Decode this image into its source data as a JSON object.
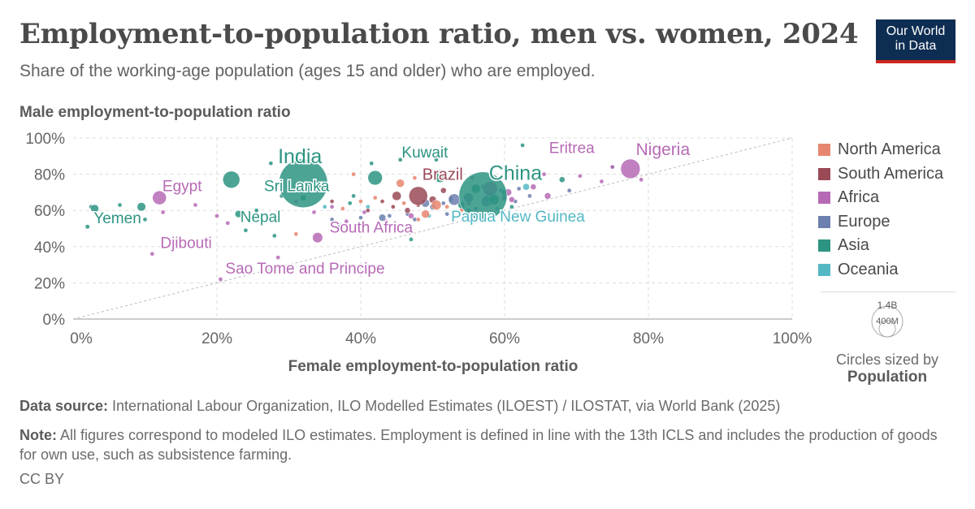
{
  "header": {
    "title": "Employment-to-population ratio, men vs. women, 2024",
    "subtitle": "Share of the working-age population (ages 15 and older) who are employed."
  },
  "logo": {
    "line1": "Our World",
    "line2": "in Data"
  },
  "colors": {
    "North America": "#e6866f",
    "South America": "#9a4a57",
    "Africa": "#b66ab5",
    "Europe": "#6d7fae",
    "Asia": "#2d9482",
    "Oceania": "#54b8c4"
  },
  "chart_data": {
    "type": "scatter",
    "title": "Employment-to-population ratio, men vs. women, 2024",
    "xlabel": "Female employment-to-population ratio",
    "ylabel": "Male employment-to-population ratio",
    "xlim": [
      0,
      100
    ],
    "ylim": [
      0,
      100
    ],
    "x_ticks": [
      "0%",
      "20%",
      "40%",
      "60%",
      "80%",
      "100%"
    ],
    "y_ticks": [
      "0%",
      "20%",
      "40%",
      "60%",
      "80%",
      "100%"
    ],
    "grid": true,
    "reference_line": "y = x",
    "size_variable": "Population",
    "legend": [
      "North America",
      "South America",
      "Africa",
      "Europe",
      "Asia",
      "Oceania"
    ],
    "legend_position": "right",
    "labeled_points": [
      {
        "name": "India",
        "region": "Asia",
        "x": 32,
        "y": 75,
        "pop": 1450,
        "label": "India"
      },
      {
        "name": "China",
        "region": "Asia",
        "x": 57,
        "y": 68,
        "pop": 1410,
        "label": "China"
      },
      {
        "name": "Nigeria",
        "region": "Africa",
        "x": 77.5,
        "y": 83,
        "pop": 230,
        "label": "Nigeria"
      },
      {
        "name": "Eritrea",
        "region": "Africa",
        "x": 75,
        "y": 84,
        "pop": 4,
        "label": "Eritrea"
      },
      {
        "name": "Kuwait",
        "region": "Asia",
        "x": 50.5,
        "y": 88,
        "pop": 5,
        "label": "Kuwait"
      },
      {
        "name": "Brazil",
        "region": "South America",
        "x": 48,
        "y": 68,
        "pop": 212,
        "label": "Brazil"
      },
      {
        "name": "Sri Lanka",
        "region": "Asia",
        "x": 32,
        "y": 67,
        "pop": 22,
        "label": "Sri Lanka"
      },
      {
        "name": "Egypt",
        "region": "Africa",
        "x": 12,
        "y": 67,
        "pop": 116,
        "label": "Egypt"
      },
      {
        "name": "Yemen",
        "region": "Asia",
        "x": 3,
        "y": 61,
        "pop": 40,
        "label": "Yemen"
      },
      {
        "name": "Nepal",
        "region": "Asia",
        "x": 23,
        "y": 58,
        "pop": 30,
        "label": "Nepal"
      },
      {
        "name": "South Africa",
        "region": "Africa",
        "x": 34,
        "y": 45,
        "pop": 64,
        "label": "South Africa"
      },
      {
        "name": "Papua New Guinea",
        "region": "Oceania",
        "x": 49.5,
        "y": 57,
        "pop": 10,
        "label": "Papua New Guinea"
      },
      {
        "name": "Djibouti",
        "region": "Africa",
        "x": 11,
        "y": 36,
        "pop": 1,
        "label": "Djibouti"
      },
      {
        "name": "Sao Tome and Principe",
        "region": "Africa",
        "x": 20.5,
        "y": 22,
        "pop": 0.2,
        "label": "Sao Tome and Principe"
      }
    ],
    "points": [
      {
        "region": "Asia",
        "x": 22,
        "y": 77,
        "pop": 175
      },
      {
        "region": "Asia",
        "x": 42,
        "y": 78,
        "pop": 127
      },
      {
        "region": "Asia",
        "x": 51,
        "y": 79,
        "pop": 100
      },
      {
        "region": "Asia",
        "x": 62.5,
        "y": 96,
        "pop": 3
      },
      {
        "region": "Asia",
        "x": 27.5,
        "y": 86,
        "pop": 3
      },
      {
        "region": "Asia",
        "x": 41.5,
        "y": 86,
        "pop": 3
      },
      {
        "region": "Asia",
        "x": 45.5,
        "y": 88,
        "pop": 3
      },
      {
        "region": "Asia",
        "x": 56,
        "y": 72,
        "pop": 50
      },
      {
        "region": "Asia",
        "x": 58.5,
        "y": 66,
        "pop": 70
      },
      {
        "region": "Asia",
        "x": 54,
        "y": 63,
        "pop": 30
      },
      {
        "region": "Asia",
        "x": 60,
        "y": 70,
        "pop": 20
      },
      {
        "region": "Asia",
        "x": 52.5,
        "y": 66,
        "pop": 15
      },
      {
        "region": "Asia",
        "x": 68,
        "y": 77,
        "pop": 20
      },
      {
        "region": "Asia",
        "x": 75,
        "y": 84,
        "pop": 3
      },
      {
        "region": "Asia",
        "x": 9.5,
        "y": 62,
        "pop": 45
      },
      {
        "region": "Asia",
        "x": 6.5,
        "y": 63,
        "pop": 5
      },
      {
        "region": "Asia",
        "x": 2.5,
        "y": 62,
        "pop": 3
      },
      {
        "region": "Asia",
        "x": 2,
        "y": 51,
        "pop": 12
      },
      {
        "region": "Asia",
        "x": 10,
        "y": 55,
        "pop": 5
      },
      {
        "region": "Asia",
        "x": 24,
        "y": 49,
        "pop": 3
      },
      {
        "region": "Asia",
        "x": 28,
        "y": 46,
        "pop": 5
      },
      {
        "region": "Asia",
        "x": 29,
        "y": 68,
        "pop": 3
      },
      {
        "region": "Asia",
        "x": 39,
        "y": 68,
        "pop": 10
      },
      {
        "region": "Asia",
        "x": 38.5,
        "y": 64,
        "pop": 8
      },
      {
        "region": "Asia",
        "x": 47,
        "y": 44,
        "pop": 3
      },
      {
        "region": "Asia",
        "x": 55,
        "y": 60,
        "pop": 10
      },
      {
        "region": "Asia",
        "x": 61,
        "y": 62,
        "pop": 8
      },
      {
        "region": "Asia",
        "x": 25.5,
        "y": 60,
        "pop": 3
      },
      {
        "region": "Europe",
        "x": 53,
        "y": 66,
        "pop": 80
      },
      {
        "region": "Europe",
        "x": 55,
        "y": 67,
        "pop": 60
      },
      {
        "region": "Europe",
        "x": 49,
        "y": 64,
        "pop": 40
      },
      {
        "region": "Europe",
        "x": 57.5,
        "y": 65,
        "pop": 70
      },
      {
        "region": "Europe",
        "x": 58,
        "y": 67,
        "pop": 60
      },
      {
        "region": "Europe",
        "x": 43,
        "y": 56,
        "pop": 30
      },
      {
        "region": "Europe",
        "x": 60,
        "y": 67,
        "pop": 20
      },
      {
        "region": "Europe",
        "x": 62,
        "y": 72,
        "pop": 10
      },
      {
        "region": "Europe",
        "x": 50,
        "y": 62,
        "pop": 20
      },
      {
        "region": "Europe",
        "x": 46.5,
        "y": 58,
        "pop": 10
      },
      {
        "region": "Europe",
        "x": 51.5,
        "y": 64,
        "pop": 10
      },
      {
        "region": "Europe",
        "x": 56,
        "y": 61,
        "pop": 5
      },
      {
        "region": "Europe",
        "x": 61.5,
        "y": 65,
        "pop": 5
      },
      {
        "region": "Europe",
        "x": 44,
        "y": 57,
        "pop": 10
      },
      {
        "region": "Europe",
        "x": 40,
        "y": 56,
        "pop": 5
      },
      {
        "region": "Europe",
        "x": 47.5,
        "y": 55,
        "pop": 5
      },
      {
        "region": "Europe",
        "x": 59.5,
        "y": 71,
        "pop": 5
      },
      {
        "region": "Europe",
        "x": 37,
        "y": 52,
        "pop": 3
      },
      {
        "region": "Europe",
        "x": 69,
        "y": 71,
        "pop": 5
      },
      {
        "region": "Europe",
        "x": 63.5,
        "y": 68,
        "pop": 3
      },
      {
        "region": "Europe",
        "x": 57,
        "y": 73,
        "pop": 5
      },
      {
        "region": "Europe",
        "x": 52,
        "y": 58,
        "pop": 3
      },
      {
        "region": "Europe",
        "x": 36,
        "y": 55,
        "pop": 5
      },
      {
        "region": "Africa",
        "x": 58,
        "y": 72,
        "pop": 130
      },
      {
        "region": "Africa",
        "x": 60.5,
        "y": 70,
        "pop": 30
      },
      {
        "region": "Africa",
        "x": 64,
        "y": 73,
        "pop": 20
      },
      {
        "region": "Africa",
        "x": 66,
        "y": 68,
        "pop": 25
      },
      {
        "region": "Africa",
        "x": 70.5,
        "y": 79,
        "pop": 10
      },
      {
        "region": "Africa",
        "x": 73.5,
        "y": 76,
        "pop": 10
      },
      {
        "region": "Africa",
        "x": 79,
        "y": 77,
        "pop": 10
      },
      {
        "region": "Africa",
        "x": 65.5,
        "y": 80,
        "pop": 5
      },
      {
        "region": "Africa",
        "x": 61,
        "y": 66,
        "pop": 20
      },
      {
        "region": "Africa",
        "x": 55.5,
        "y": 78,
        "pop": 10
      },
      {
        "region": "Africa",
        "x": 47,
        "y": 57,
        "pop": 20
      },
      {
        "region": "Africa",
        "x": 43.5,
        "y": 54,
        "pop": 5
      },
      {
        "region": "Africa",
        "x": 40.5,
        "y": 59,
        "pop": 10
      },
      {
        "region": "Africa",
        "x": 36,
        "y": 62,
        "pop": 5
      },
      {
        "region": "Africa",
        "x": 31,
        "y": 65,
        "pop": 5
      },
      {
        "region": "Africa",
        "x": 33.5,
        "y": 59,
        "pop": 10
      },
      {
        "region": "Africa",
        "x": 20,
        "y": 57,
        "pop": 5
      },
      {
        "region": "Africa",
        "x": 21.5,
        "y": 53,
        "pop": 5
      },
      {
        "region": "Africa",
        "x": 17,
        "y": 63,
        "pop": 5
      },
      {
        "region": "Africa",
        "x": 12.5,
        "y": 59,
        "pop": 10
      },
      {
        "region": "Africa",
        "x": 38,
        "y": 54,
        "pop": 5
      },
      {
        "region": "Africa",
        "x": 28.5,
        "y": 34,
        "pop": 3
      },
      {
        "region": "Africa",
        "x": 55,
        "y": 64,
        "pop": 15
      },
      {
        "region": "South America",
        "x": 45,
        "y": 68,
        "pop": 50
      },
      {
        "region": "South America",
        "x": 50,
        "y": 66,
        "pop": 30
      },
      {
        "region": "South America",
        "x": 46.5,
        "y": 60,
        "pop": 20
      },
      {
        "region": "South America",
        "x": 51.5,
        "y": 71,
        "pop": 20
      },
      {
        "region": "South America",
        "x": 48,
        "y": 63,
        "pop": 10
      },
      {
        "region": "South America",
        "x": 44.5,
        "y": 62,
        "pop": 10
      },
      {
        "region": "South America",
        "x": 41,
        "y": 60,
        "pop": 5
      },
      {
        "region": "South America",
        "x": 43,
        "y": 65,
        "pop": 5
      },
      {
        "region": "South America",
        "x": 52.5,
        "y": 67,
        "pop": 5
      },
      {
        "region": "South America",
        "x": 36,
        "y": 65,
        "pop": 3
      },
      {
        "region": "North America",
        "x": 45.5,
        "y": 75,
        "pop": 40
      },
      {
        "region": "North America",
        "x": 50.5,
        "y": 63,
        "pop": 60
      },
      {
        "region": "North America",
        "x": 49,
        "y": 58,
        "pop": 40
      },
      {
        "region": "North America",
        "x": 39,
        "y": 80,
        "pop": 5
      },
      {
        "region": "North America",
        "x": 40,
        "y": 65,
        "pop": 10
      },
      {
        "region": "North America",
        "x": 42,
        "y": 67,
        "pop": 5
      },
      {
        "region": "North America",
        "x": 47.5,
        "y": 78,
        "pop": 5
      },
      {
        "region": "North America",
        "x": 46,
        "y": 64,
        "pop": 5
      },
      {
        "region": "North America",
        "x": 52,
        "y": 62,
        "pop": 10
      },
      {
        "region": "North America",
        "x": 37.5,
        "y": 61,
        "pop": 3
      },
      {
        "region": "North America",
        "x": 54,
        "y": 60,
        "pop": 3
      },
      {
        "region": "North America",
        "x": 31,
        "y": 47,
        "pop": 3
      },
      {
        "region": "North America",
        "x": 48,
        "y": 55,
        "pop": 5
      },
      {
        "region": "Oceania",
        "x": 63,
        "y": 73,
        "pop": 27
      },
      {
        "region": "Oceania",
        "x": 59,
        "y": 61,
        "pop": 5
      },
      {
        "region": "Oceania",
        "x": 56.5,
        "y": 58,
        "pop": 3
      },
      {
        "region": "Oceania",
        "x": 41,
        "y": 62,
        "pop": 3
      },
      {
        "region": "Oceania",
        "x": 35,
        "y": 62,
        "pop": 3
      }
    ]
  },
  "legend": {
    "items": [
      "North America",
      "South America",
      "Africa",
      "Europe",
      "Asia",
      "Oceania"
    ],
    "size_legend": {
      "large_label": "1.4B",
      "small_label": "400M",
      "caption": "Circles sized by",
      "variable": "Population"
    }
  },
  "footer": {
    "source_label": "Data source:",
    "source_text": " International Labour Organization, ILO Modelled Estimates (ILOEST) / ILOSTAT, via World Bank (2025)",
    "note_label": "Note:",
    "note_text": " All figures correspond to modeled ILO estimates. Employment is defined in line with the 13th ICLS and includes the production of goods for own use, such as subsistence farming.",
    "license": "CC BY"
  }
}
